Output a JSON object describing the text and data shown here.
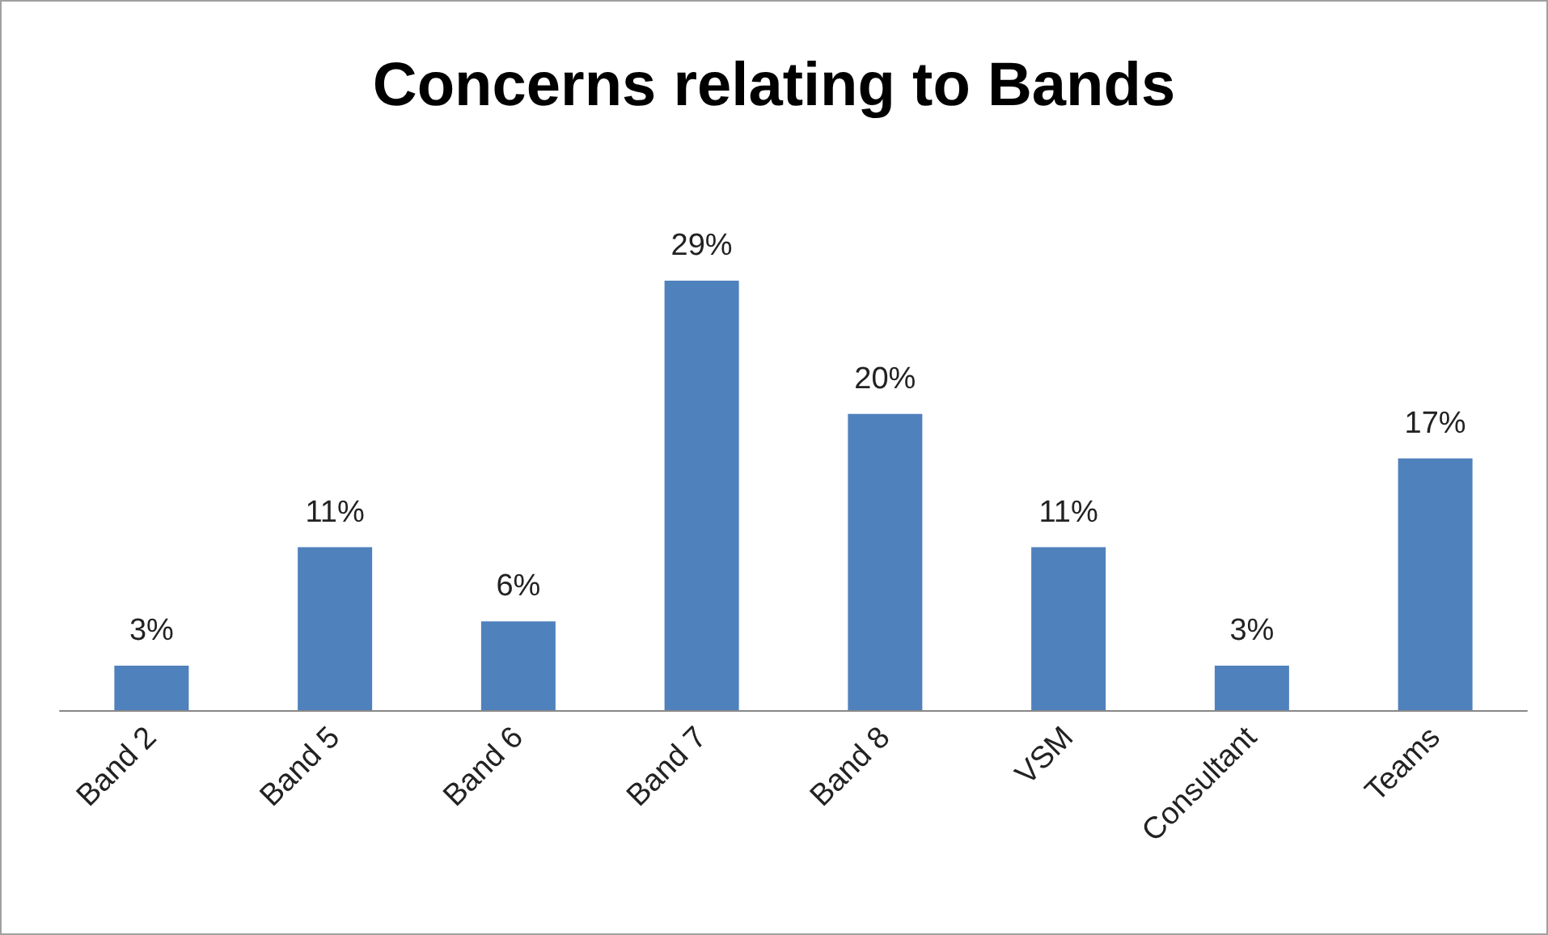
{
  "chart_data": {
    "type": "bar",
    "title": "Concerns relating to Bands",
    "categories": [
      "Band 2",
      "Band 5",
      "Band 6",
      "Band 7",
      "Band 8",
      "VSM",
      "Consultant",
      "Teams"
    ],
    "values": [
      3,
      11,
      6,
      29,
      20,
      11,
      3,
      17
    ],
    "value_labels": [
      "3%",
      "11%",
      "6%",
      "29%",
      "20%",
      "11%",
      "3%",
      "17%"
    ],
    "color": "#4f81bd",
    "tick_labels": "x"
  }
}
